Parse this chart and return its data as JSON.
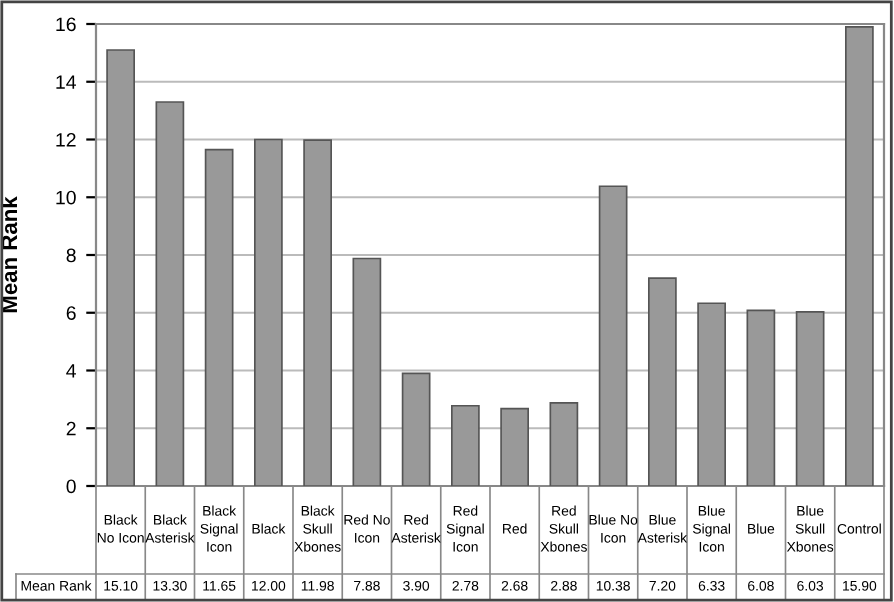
{
  "chart_data": {
    "type": "bar",
    "ylabel": "Mean Rank",
    "categories": [
      "Black\nNo Icon",
      "Black\nAsterisk",
      "Black\nSignal\nIcon",
      "Black",
      "Black\nSkull\nXbones",
      "Red No\nIcon",
      "Red\nAsterisk",
      "Red\nSignal\nIcon",
      "Red",
      "Red\nSkull\nXbones",
      "Blue No\nIcon",
      "Blue\nAsterisk",
      "Blue\nSignal\nIcon",
      "Blue",
      "Blue\nSkull\nXbones",
      "Control"
    ],
    "series": [
      {
        "name": "Mean Rank",
        "color": "#999999",
        "values": [
          15.1,
          13.3,
          11.65,
          12.0,
          11.98,
          7.88,
          3.9,
          2.78,
          2.68,
          2.88,
          10.38,
          7.2,
          6.33,
          6.08,
          6.03,
          15.9
        ],
        "value_labels": [
          "15.10",
          "13.30",
          "11.65",
          "12.00",
          "11.98",
          "7.88",
          "3.90",
          "2.78",
          "2.68",
          "2.88",
          "10.38",
          "7.20",
          "6.33",
          "6.08",
          "6.03",
          "15.90"
        ]
      }
    ],
    "ylim": [
      0,
      16
    ],
    "yticks": [
      0,
      2,
      4,
      6,
      8,
      10,
      12,
      14,
      16
    ],
    "grid": "y",
    "legend": false
  }
}
